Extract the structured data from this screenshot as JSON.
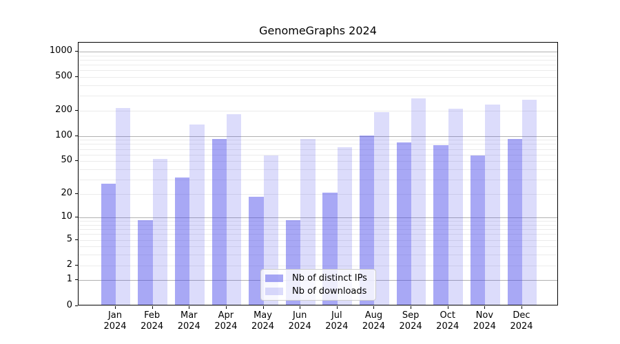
{
  "chart_data": {
    "type": "bar",
    "title": "GenomeGraphs 2024",
    "x": [
      "Jan",
      "Feb",
      "Mar",
      "Apr",
      "May",
      "Jun",
      "Jul",
      "Aug",
      "Sep",
      "Oct",
      "Nov",
      "Dec"
    ],
    "x_year": "2024",
    "series": [
      {
        "name": "Nb of distinct IPs",
        "values": [
          26,
          9,
          31,
          89,
          18,
          9,
          20,
          98,
          81,
          75,
          57,
          90
        ],
        "color": "rgba(70,70,233,0.47)"
      },
      {
        "name": "Nb of downloads",
        "values": [
          210,
          52,
          132,
          178,
          57,
          90,
          72,
          188,
          272,
          205,
          230,
          260
        ],
        "color": "rgba(70,70,233,0.19)"
      }
    ],
    "y_scale": "log1p",
    "ylim": [
      0,
      1280
    ],
    "y_ticks": [
      0,
      1,
      2,
      5,
      10,
      20,
      50,
      100,
      200,
      500,
      1000
    ],
    "grid_major": [
      1,
      10,
      100,
      1000
    ],
    "grid_minor": [
      2,
      3,
      4,
      5,
      6,
      7,
      8,
      9,
      20,
      30,
      40,
      50,
      60,
      70,
      80,
      90,
      200,
      300,
      400,
      500,
      600,
      700,
      800,
      900
    ],
    "legend_position": "lower center"
  },
  "colors": {
    "bar_base": "#4646e9",
    "grid_major": "#b0b0b0",
    "grid_minor": "#ebebeb",
    "axis": "#000000",
    "legend_border": "#cccccc"
  }
}
